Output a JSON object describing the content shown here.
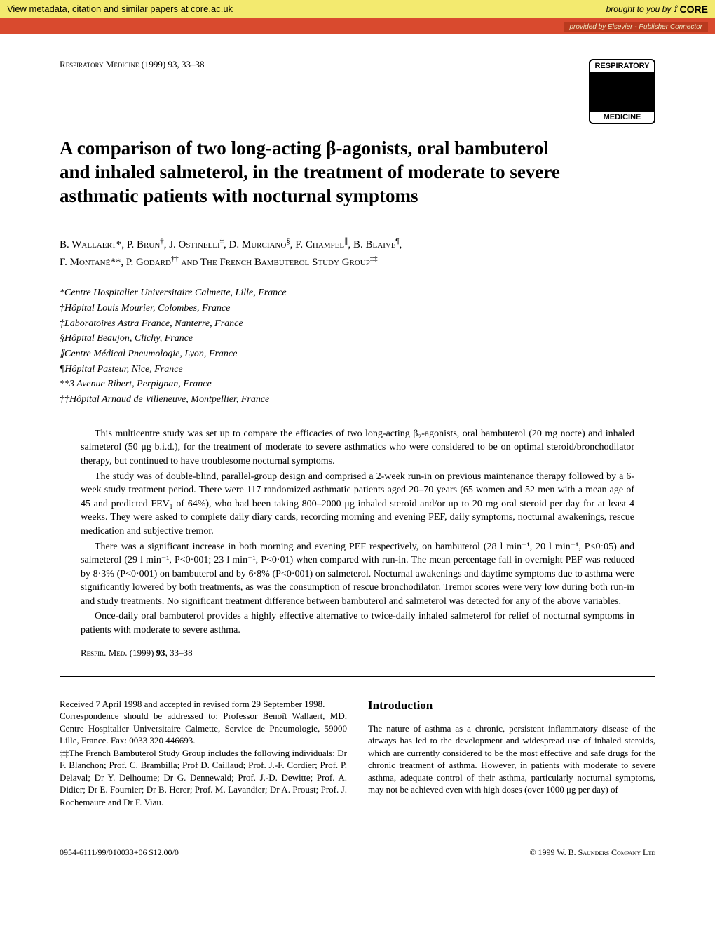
{
  "banner": {
    "metadata_text": "View metadata, citation and similar papers at",
    "core_link": "core.ac.uk",
    "brought_by": "brought to you by",
    "core_brand": "CORE",
    "provided_by": "provided by Elsevier - Publisher Connector"
  },
  "journal": {
    "reference": "Respiratory Medicine (1999) 93, 33–38",
    "logo_top": "RESPIRATORY",
    "logo_bottom": "MEDICINE"
  },
  "title": "A comparison of two long-acting β-agonists, oral bambuterol and inhaled salmeterol, in the treatment of moderate to severe asthmatic patients with nocturnal symptoms",
  "authors_line1": "B. Wallaert*, P. Brun†, J. Ostinelli‡, D. Murciano§, F. Champel∥, B. Blaive¶,",
  "authors_line2": "F. Montané**, P. Godard†† and The French Bambuterol Study Group‡‡",
  "affiliations": [
    "*Centre Hospitalier Universitaire Calmette, Lille, France",
    "†Hôpital Louis Mourier, Colombes, France",
    "‡Laboratoires Astra France, Nanterre, France",
    "§Hôpital Beaujon, Clichy, France",
    "∥Centre Médical Pneumologie, Lyon, France",
    "¶Hôpital Pasteur, Nice, France",
    "**3 Avenue Ribert, Perpignan, France",
    "††Hôpital Arnaud de Villeneuve, Montpellier, France"
  ],
  "abstract": {
    "p1": "This multicentre study was set up to compare the efficacies of two long-acting β₂-agonists, oral bambuterol (20 mg nocte) and inhaled salmeterol (50 μg b.i.d.), for the treatment of moderate to severe asthmatics who were considered to be on optimal steroid/bronchodilator therapy, but continued to have troublesome nocturnal symptoms.",
    "p2": "The study was of double-blind, parallel-group design and comprised a 2-week run-in on previous maintenance therapy followed by a 6-week study treatment period. There were 117 randomized asthmatic patients aged 20–70 years (65 women and 52 men with a mean age of 45 and predicted FEV₁ of 64%), who had been taking 800–2000 μg inhaled steroid and/or up to 20 mg oral steroid per day for at least 4 weeks. They were asked to complete daily diary cards, recording morning and evening PEF, daily symptoms, nocturnal awakenings, rescue medication and subjective tremor.",
    "p3": "There was a significant increase in both morning and evening PEF respectively, on bambuterol (28 l min⁻¹, 20 l min⁻¹, P<0·05) and salmeterol (29 l min⁻¹, P<0·001; 23 l min⁻¹, P<0·01) when compared with run-in. The mean percentage fall in overnight PEF was reduced by 8·3% (P<0·001) on bambuterol and by 6·8% (P<0·001) on salmeterol. Nocturnal awakenings and daytime symptoms due to asthma were significantly lowered by both treatments, as was the consumption of rescue bronchodilator. Tremor scores were very low during both run-in and study treatments. No significant treatment difference between bambuterol and salmeterol was detected for any of the above variables.",
    "p4": "Once-daily oral bambuterol provides a highly effective alternative to twice-daily inhaled salmeterol for relief of nocturnal symptoms in patients with moderate to severe asthma."
  },
  "abstract_ref": "Respir. Med. (1999) 93, 33–38",
  "left_col": {
    "received": "Received 7 April 1998 and accepted in revised form 29 September 1998.",
    "correspondence": "Correspondence should be addressed to: Professor Benoît Wallaert, MD, Centre Hospitalier Universitaire Calmette, Service de Pneumologie, 59000 Lille, France. Fax: 0033 320 446693.",
    "group_note": "‡‡The French Bambuterol Study Group includes the following individuals: Dr F. Blanchon; Prof. C. Brambilla; Prof D. Caillaud; Prof. J.-F. Cordier; Prof. P. Delaval; Dr Y. Delhoume; Dr G. Dennewald; Prof. J.-D. Dewitte; Prof. A. Didier; Dr E. Fournier; Dr B. Herer; Prof. M. Lavandier; Dr A. Proust; Prof. J. Rochemaure and Dr F. Viau."
  },
  "right_col": {
    "heading": "Introduction",
    "text": "The nature of asthma as a chronic, persistent inflammatory disease of the airways has led to the development and widespread use of inhaled steroids, which are currently considered to be the most effective and safe drugs for the chronic treatment of asthma. However, in patients with moderate to severe asthma, adequate control of their asthma, particularly nocturnal symptoms, may not be achieved even with high doses (over 1000 μg per day) of"
  },
  "footer": {
    "left": "0954-6111/99/010033+06 $12.00/0",
    "right": "© 1999 W. B. Saunders Company Ltd"
  },
  "colors": {
    "banner_bg": "#f3ea6f",
    "sub_banner_bg": "#d94a2e",
    "sub_banner_inner_bg": "#b93a1e",
    "text": "#000000",
    "page_bg": "#ffffff"
  },
  "typography": {
    "body_font": "Times New Roman",
    "banner_font": "Arial",
    "title_fontsize": 27,
    "body_fontsize": 14,
    "footer_fontsize": 12
  }
}
